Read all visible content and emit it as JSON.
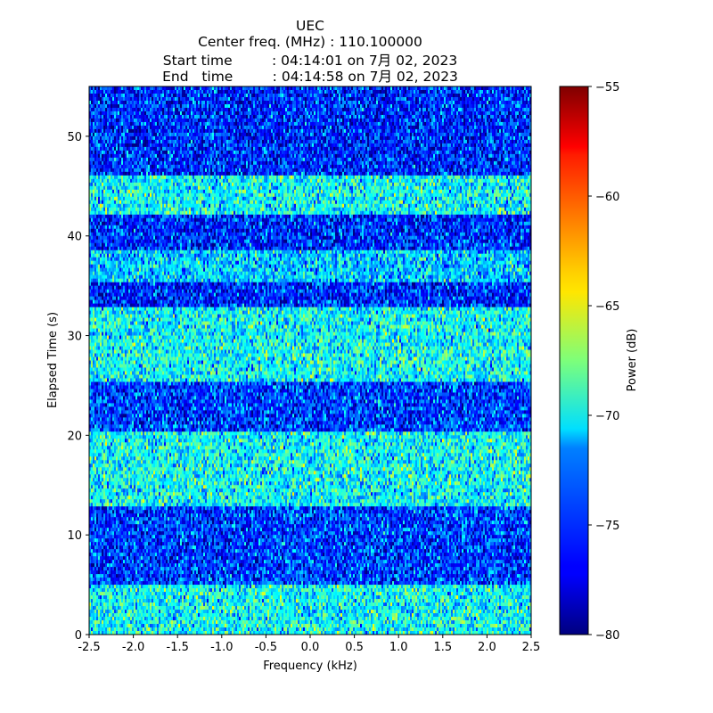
{
  "chart_data": {
    "type": "heatmap",
    "title_lines": [
      "UEC",
      "Center freq. (MHz) : 110.100000",
      "Start time         : 04:14:01 on 7月 02, 2023",
      "End   time         : 04:14:58 on 7月 02, 2023"
    ],
    "xlabel": "Frequency (kHz)",
    "ylabel": "Elapsed Time (s)",
    "xlim": [
      -2.5,
      2.5
    ],
    "ylim": [
      0,
      55
    ],
    "xticks": [
      "-2.5",
      "-2.0",
      "-1.5",
      "-1.0",
      "-0.5",
      "0.0",
      "0.5",
      "1.0",
      "1.5",
      "2.0",
      "2.5"
    ],
    "yticks": [
      "0",
      "10",
      "20",
      "30",
      "40",
      "50"
    ],
    "colorbar": {
      "label": "Power (dB)",
      "colormap": "jet",
      "range": [
        -80,
        -55
      ],
      "ticks": [
        "−80",
        "−75",
        "−70",
        "−65",
        "−60",
        "−55"
      ]
    },
    "bands": [
      {
        "t_start": 0,
        "t_end": 5,
        "mean_power_db": -70.5
      },
      {
        "t_start": 5,
        "t_end": 13,
        "mean_power_db": -75.5
      },
      {
        "t_start": 13,
        "t_end": 20.5,
        "mean_power_db": -70.5
      },
      {
        "t_start": 20.5,
        "t_end": 25.5,
        "mean_power_db": -75.5
      },
      {
        "t_start": 25.5,
        "t_end": 33,
        "mean_power_db": -70.5
      },
      {
        "t_start": 33,
        "t_end": 35.5,
        "mean_power_db": -76
      },
      {
        "t_start": 35.5,
        "t_end": 38.5,
        "mean_power_db": -72
      },
      {
        "t_start": 38.5,
        "t_end": 42,
        "mean_power_db": -76
      },
      {
        "t_start": 42,
        "t_end": 46,
        "mean_power_db": -70.5
      },
      {
        "t_start": 46,
        "t_end": 55,
        "mean_power_db": -76
      }
    ]
  }
}
